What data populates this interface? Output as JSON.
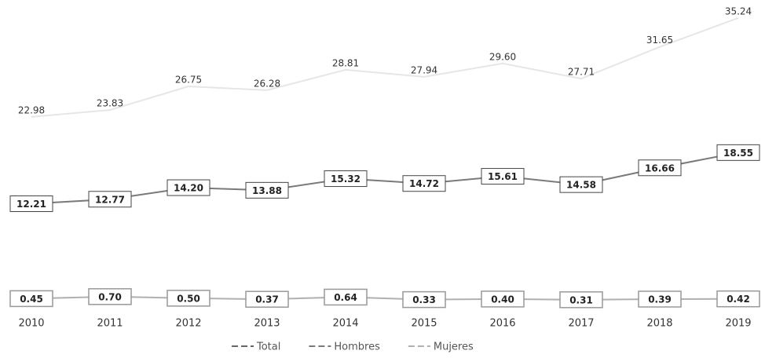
{
  "chart_data": {
    "type": "line",
    "categories": [
      "2010",
      "2011",
      "2012",
      "2013",
      "2014",
      "2015",
      "2016",
      "2017",
      "2018",
      "2019"
    ],
    "ylim": [
      0,
      36
    ],
    "series": [
      {
        "name": "Total",
        "color": "#e6e6e6",
        "label_style": "plain",
        "values": [
          22.98,
          23.83,
          26.75,
          26.28,
          28.81,
          27.94,
          29.6,
          27.71,
          31.65,
          35.24
        ],
        "value_labels": [
          "22.98",
          "23.83",
          "26.75",
          "26.28",
          "28.81",
          "27.94",
          "29.60",
          "27.71",
          "31.65",
          "35.24"
        ]
      },
      {
        "name": "Hombres",
        "color": "#7a7a7a",
        "label_style": "box",
        "values": [
          12.21,
          12.77,
          14.2,
          13.88,
          15.32,
          14.72,
          15.61,
          14.58,
          16.66,
          18.55
        ],
        "value_labels": [
          "12.21",
          "12.77",
          "14.20",
          "13.88",
          "15.32",
          "14.72",
          "15.61",
          "14.58",
          "16.66",
          "18.55"
        ]
      },
      {
        "name": "Mujeres",
        "color": "#b0b0b0",
        "label_style": "box",
        "values": [
          0.45,
          0.7,
          0.5,
          0.37,
          0.64,
          0.33,
          0.4,
          0.31,
          0.39,
          0.42
        ],
        "value_labels": [
          "0.45",
          "0.70",
          "0.50",
          "0.37",
          "0.64",
          "0.33",
          "0.40",
          "0.31",
          "0.39",
          "0.42"
        ]
      }
    ],
    "legend": "bottom"
  }
}
